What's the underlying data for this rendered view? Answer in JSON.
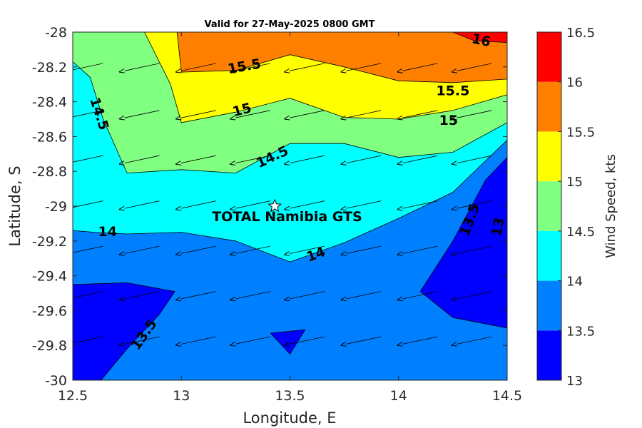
{
  "chart_data": {
    "type": "filled-contour",
    "title": "Valid for 27-May-2025 0800 GMT",
    "xlabel": "Longitude, E",
    "ylabel": "Latitude, S",
    "xlim": [
      12.5,
      14.5
    ],
    "ylim": [
      -30,
      -28
    ],
    "xticks": [
      "12.5",
      "13",
      "13.5",
      "14",
      "14.5"
    ],
    "yticks": [
      "-28",
      "-28.2",
      "-28.4",
      "-28.6",
      "-28.8",
      "-29",
      "-29.2",
      "-29.4",
      "-29.6",
      "-29.8",
      "-30"
    ],
    "colorbar": {
      "label": "Wind Speed, kts",
      "ticks": [
        "13",
        "13.5",
        "14",
        "14.5",
        "15",
        "15.5",
        "16",
        "16.5"
      ],
      "bands": [
        {
          "from": 13.0,
          "to": 13.5,
          "color": "#0000ff"
        },
        {
          "from": 13.5,
          "to": 14.0,
          "color": "#0080ff"
        },
        {
          "from": 14.0,
          "to": 14.5,
          "color": "#00ffff"
        },
        {
          "from": 14.5,
          "to": 15.0,
          "color": "#80ff80"
        },
        {
          "from": 15.0,
          "to": 15.5,
          "color": "#ffff00"
        },
        {
          "from": 15.5,
          "to": 16.0,
          "color": "#ff8000"
        },
        {
          "from": 16.0,
          "to": 16.5,
          "color": "#ff0000"
        }
      ]
    },
    "contour_regions": [
      {
        "level": 13.5,
        "color": "#0080ff",
        "points": [
          [
            12.5,
            -29.14
          ],
          [
            12.6,
            -29.15
          ],
          [
            12.75,
            -29.16
          ],
          [
            13.0,
            -29.15
          ],
          [
            13.25,
            -29.2
          ],
          [
            13.5,
            -29.32
          ],
          [
            13.75,
            -29.21
          ],
          [
            14.0,
            -29.07
          ],
          [
            14.25,
            -28.92
          ],
          [
            14.5,
            -28.62
          ],
          [
            14.5,
            -30
          ],
          [
            12.5,
            -30
          ]
        ]
      },
      {
        "level": 13.0,
        "color": "#0000ff",
        "points": [
          [
            12.5,
            -29.45
          ],
          [
            12.75,
            -29.44
          ],
          [
            12.97,
            -29.49
          ],
          [
            12.9,
            -29.62
          ],
          [
            12.75,
            -29.82
          ],
          [
            12.63,
            -30
          ],
          [
            12.5,
            -30
          ]
        ]
      },
      {
        "level": 13.0,
        "color": "#0000ff",
        "points": [
          [
            13.41,
            -29.73
          ],
          [
            13.57,
            -29.71
          ],
          [
            13.5,
            -29.85
          ]
        ]
      },
      {
        "level": 13.0,
        "color": "#0000ff",
        "points": [
          [
            14.5,
            -28.72
          ],
          [
            14.5,
            -29.7
          ],
          [
            14.25,
            -29.64
          ],
          [
            14.1,
            -29.49
          ],
          [
            14.25,
            -29.2
          ],
          [
            14.4,
            -28.85
          ]
        ]
      },
      {
        "level": 14.5,
        "color": "#80ff80",
        "points": [
          [
            12.5,
            -28.0
          ],
          [
            12.75,
            -28.0
          ],
          [
            12.97,
            -28.0
          ],
          [
            13.0,
            -28.15
          ],
          [
            13.0,
            -28.4
          ],
          [
            13.75,
            -28.0
          ],
          [
            14.5,
            -28.0
          ],
          [
            14.5,
            -28.52
          ],
          [
            14.25,
            -28.69
          ],
          [
            14.0,
            -28.72
          ],
          [
            13.75,
            -28.64
          ],
          [
            13.5,
            -28.64
          ],
          [
            13.25,
            -28.81
          ],
          [
            13.0,
            -28.79
          ],
          [
            12.75,
            -28.81
          ],
          [
            12.64,
            -28.5
          ],
          [
            12.58,
            -28.26
          ],
          [
            12.5,
            -28.17
          ]
        ]
      },
      {
        "level": 15.0,
        "color": "#ffff00",
        "points": [
          [
            12.83,
            -28.0
          ],
          [
            14.5,
            -28.0
          ],
          [
            14.5,
            -28.36
          ],
          [
            14.25,
            -28.45
          ],
          [
            14.0,
            -28.5
          ],
          [
            13.75,
            -28.49
          ],
          [
            13.5,
            -28.38
          ],
          [
            13.25,
            -28.46
          ],
          [
            13.0,
            -28.52
          ],
          [
            12.95,
            -28.3
          ]
        ]
      },
      {
        "level": 15.5,
        "color": "#ff8000",
        "points": [
          [
            12.98,
            -28.0
          ],
          [
            14.5,
            -28.0
          ],
          [
            14.5,
            -28.27
          ],
          [
            14.25,
            -28.29
          ],
          [
            14.0,
            -28.28
          ],
          [
            13.75,
            -28.2
          ],
          [
            13.5,
            -28.13
          ],
          [
            13.25,
            -28.22
          ],
          [
            13.0,
            -28.23
          ]
        ]
      },
      {
        "level": 16.0,
        "color": "#ff0000",
        "points": [
          [
            14.25,
            -28.0
          ],
          [
            14.5,
            -28.0
          ],
          [
            14.5,
            -28.06
          ],
          [
            14.35,
            -28.05
          ]
        ]
      }
    ],
    "contour_labels": [
      {
        "text": "15.5",
        "lon": 13.29,
        "lat": -28.2,
        "angle": -10
      },
      {
        "text": "15.5",
        "lon": 14.25,
        "lat": -28.34,
        "angle": 0
      },
      {
        "text": "15",
        "lon": 13.28,
        "lat": -28.45,
        "angle": -15
      },
      {
        "text": "15",
        "lon": 14.23,
        "lat": -28.51,
        "angle": 0
      },
      {
        "text": "16",
        "lon": 14.38,
        "lat": -28.05,
        "angle": 12
      },
      {
        "text": "14.5",
        "lon": 12.62,
        "lat": -28.47,
        "angle": 72
      },
      {
        "text": "14.5",
        "lon": 13.42,
        "lat": -28.72,
        "angle": -25
      },
      {
        "text": "14",
        "lon": 12.66,
        "lat": -29.15,
        "angle": 0
      },
      {
        "text": "14",
        "lon": 13.62,
        "lat": -29.28,
        "angle": -20
      },
      {
        "text": "13.5",
        "lon": 12.83,
        "lat": -29.74,
        "angle": -55
      },
      {
        "text": "13.5",
        "lon": 14.33,
        "lat": -29.08,
        "angle": -70
      },
      {
        "text": "13",
        "lon": 14.46,
        "lat": -29.12,
        "angle": -80
      }
    ],
    "wind_vectors": {
      "lons": [
        12.58,
        12.84,
        13.1,
        13.35,
        13.6,
        13.86,
        14.12,
        14.37
      ],
      "lats": [
        -28.18,
        -28.45,
        -28.71,
        -28.97,
        -29.23,
        -29.49,
        -29.75,
        -30.0
      ],
      "direction_deg": 168
    },
    "site": {
      "name": "TOTAL Namibia GTS",
      "lon": 13.43,
      "lat": -29.0
    }
  }
}
